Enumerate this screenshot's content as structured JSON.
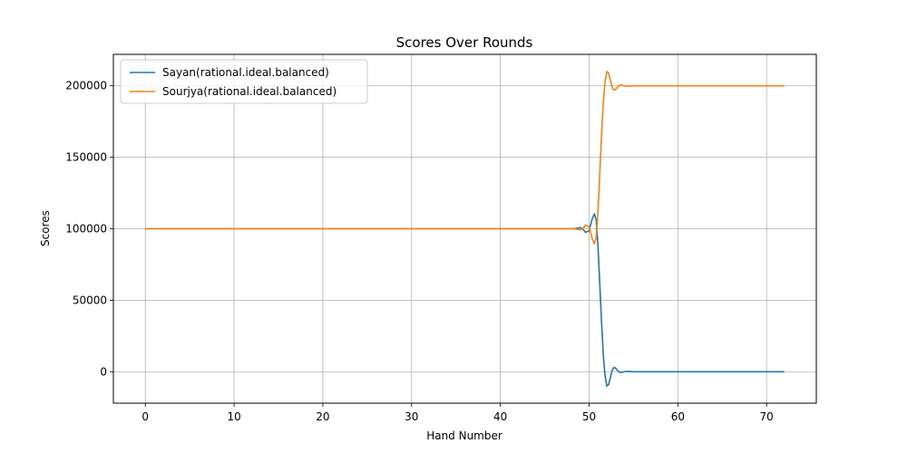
{
  "chart_data": {
    "type": "line",
    "title": "Scores Over Rounds",
    "xlabel": "Hand Number",
    "ylabel": "Scores",
    "xlim": [
      -3.6,
      75.6
    ],
    "ylim": [
      -22000,
      222000
    ],
    "xticks": [
      0,
      10,
      20,
      30,
      40,
      50,
      60,
      70
    ],
    "yticks": [
      0,
      50000,
      100000,
      150000,
      200000
    ],
    "grid": true,
    "legend_position": "upper-left",
    "series": [
      {
        "name": "Sayan(rational.ideal.balanced)",
        "color": "#1f77b4",
        "x": [
          0,
          10,
          20,
          30,
          40,
          47,
          48,
          48.5,
          49,
          49.3,
          49.6,
          50,
          50.3,
          50.6,
          50.8,
          51.0,
          51.2,
          51.4,
          51.6,
          51.8,
          52.0,
          52.2,
          52.4,
          52.6,
          52.8,
          53.0,
          53.2,
          53.4,
          53.6,
          53.8,
          54.0,
          54.5,
          55,
          55.5,
          56,
          60,
          65,
          72
        ],
        "y": [
          100000,
          100000,
          100000,
          100000,
          100000,
          100000,
          100000,
          100200,
          100800,
          99800,
          97500,
          98500,
          106000,
          110500,
          106000,
          88000,
          62000,
          35000,
          12000,
          -3000,
          -10000,
          -9000,
          -4000,
          1000,
          3000,
          2500,
          800,
          -300,
          -600,
          -200,
          100,
          200,
          0,
          0,
          0,
          0,
          0,
          0
        ]
      },
      {
        "name": "Sourjya(rational.ideal.balanced)",
        "color": "#ff7f0e",
        "x": [
          0,
          10,
          20,
          30,
          40,
          47,
          48,
          48.5,
          49,
          49.3,
          49.6,
          50,
          50.3,
          50.6,
          50.8,
          51.0,
          51.2,
          51.4,
          51.6,
          51.8,
          52.0,
          52.2,
          52.4,
          52.6,
          52.8,
          53.0,
          53.2,
          53.4,
          53.6,
          53.8,
          54.0,
          54.5,
          55,
          55.5,
          56,
          60,
          65,
          72
        ],
        "y": [
          100000,
          100000,
          100000,
          100000,
          100000,
          100000,
          100000,
          99800,
          99200,
          100200,
          102500,
          101500,
          94000,
          89500,
          94000,
          112000,
          138000,
          165000,
          188000,
          203000,
          210000,
          209000,
          204000,
          199000,
          197000,
          197500,
          199200,
          200300,
          200600,
          200200,
          199900,
          199800,
          200000,
          200000,
          200000,
          200000,
          200000,
          200000
        ]
      }
    ]
  }
}
